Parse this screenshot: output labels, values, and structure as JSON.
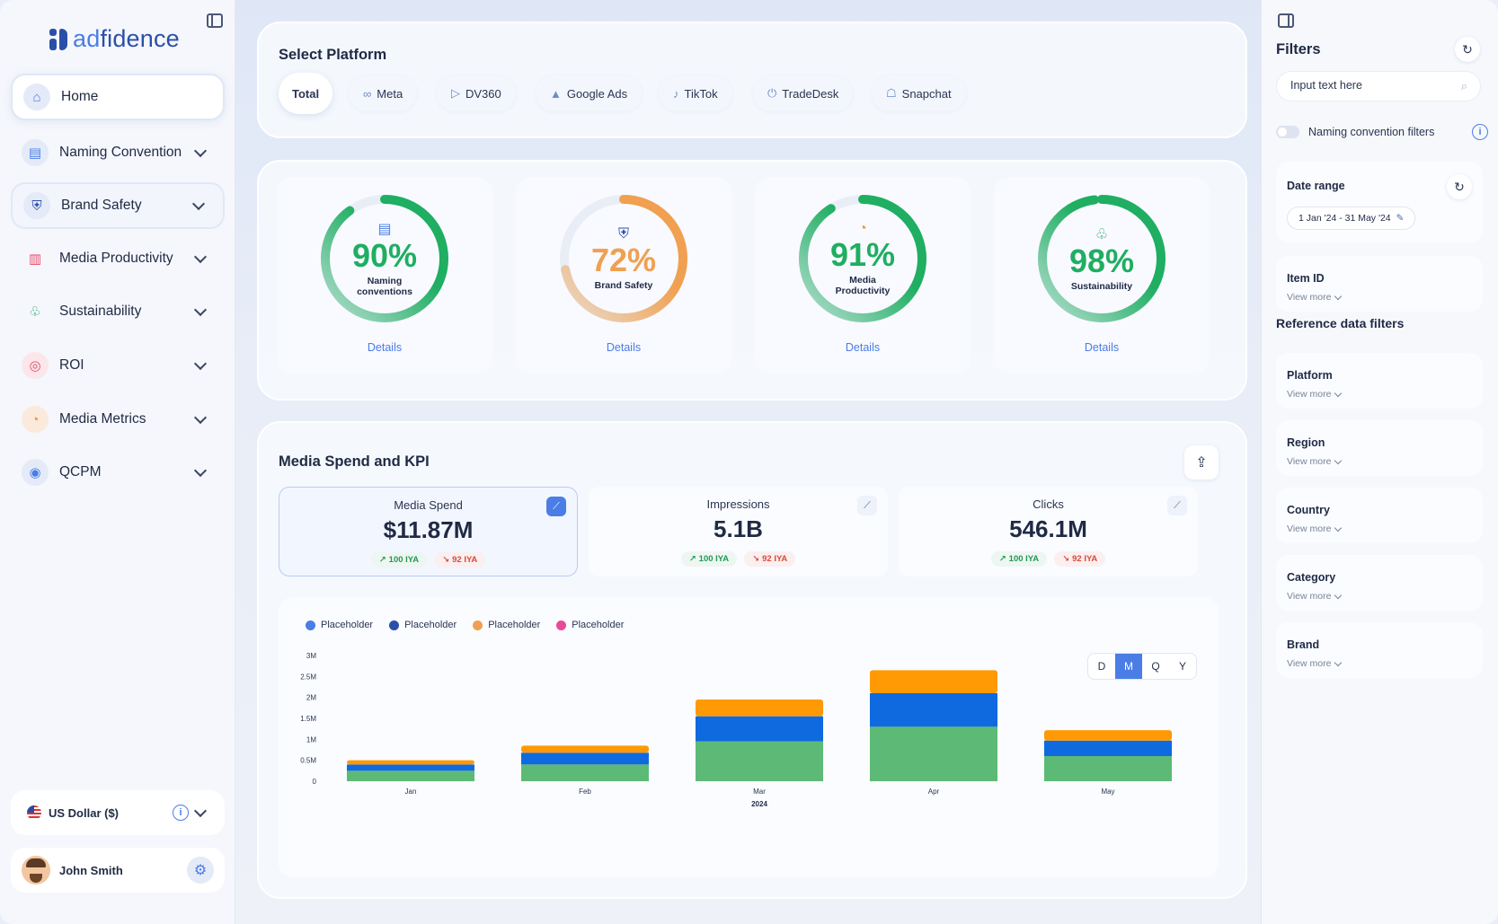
{
  "brand": {
    "name_prefix": "ad",
    "name_suffix": "fidence"
  },
  "nav": [
    {
      "label": "Home",
      "icon": "⌂",
      "icon_color": "#4a7de6",
      "icon_bg": "#e4eaf7",
      "expandable": false
    },
    {
      "label": "Naming Convention",
      "icon": "▤",
      "icon_color": "#4a7de6",
      "icon_bg": "#e4eaf7",
      "expandable": true
    },
    {
      "label": "Brand Safety",
      "icon": "⛨",
      "icon_color": "#2b4fa8",
      "icon_bg": "#e4eaf7",
      "expandable": true
    },
    {
      "label": "Media Productivity",
      "icon": "▥",
      "icon_color": "#e84a6a",
      "icon_bg": "#f5f7fc",
      "expandable": true
    },
    {
      "label": "Sustainability",
      "icon": "♧",
      "icon_color": "#22a86a",
      "icon_bg": "#f5f7fc",
      "expandable": true
    },
    {
      "label": "ROI",
      "icon": "◎",
      "icon_color": "#e84a6a",
      "icon_bg": "#fbe6ea",
      "expandable": true
    },
    {
      "label": "Media Metrics",
      "icon": "◔",
      "icon_color": "#f0963c",
      "icon_bg": "#fbeadc",
      "expandable": true
    },
    {
      "label": "QCPM",
      "icon": "◉",
      "icon_color": "#4a7de6",
      "icon_bg": "#e4eaf7",
      "expandable": true
    }
  ],
  "currency": {
    "label": "US Dollar ($)"
  },
  "user": {
    "name": "John Smith"
  },
  "platform": {
    "title": "Select Platform",
    "chips": [
      {
        "label": "Total",
        "icon": ""
      },
      {
        "label": "Meta",
        "icon": "∞"
      },
      {
        "label": "DV360",
        "icon": "▷"
      },
      {
        "label": "Google Ads",
        "icon": "▲"
      },
      {
        "label": "TikTok",
        "icon": "♪"
      },
      {
        "label": "TradeDesk",
        "icon": "⏻"
      },
      {
        "label": "Snapchat",
        "icon": "☖"
      }
    ]
  },
  "scores": [
    {
      "pct": "90%",
      "value": 90,
      "label": "Naming conventions",
      "color": "#1fae62",
      "icon": "▤",
      "icon_color": "#4a7de6",
      "details": "Details"
    },
    {
      "pct": "72%",
      "value": 72,
      "label": "Brand Safety",
      "color": "#f0a050",
      "icon": "⛨",
      "icon_color": "#2b4fa8",
      "details": "Details"
    },
    {
      "pct": "91%",
      "value": 91,
      "label": "Media Productivity",
      "color": "#1fae62",
      "icon": "◔",
      "icon_color": "#f0963c",
      "details": "Details"
    },
    {
      "pct": "98%",
      "value": 98,
      "label": "Sustainability",
      "color": "#1fae62",
      "icon": "♧",
      "icon_color": "#22a86a",
      "details": "Details"
    }
  ],
  "spend": {
    "title": "Media Spend and KPI",
    "kpis": [
      {
        "label": "Media Spend",
        "value": "$11.87M",
        "up": "100 IYA",
        "down": "92 IYA"
      },
      {
        "label": "Impressions",
        "value": "5.1B",
        "up": "100 IYA",
        "down": "92 IYA"
      },
      {
        "label": "Clicks",
        "value": "546.1M",
        "up": "100 IYA",
        "down": "92 IYA"
      }
    ],
    "periods": [
      "D",
      "M",
      "Q",
      "Y"
    ],
    "active_period": "M"
  },
  "chart_data": {
    "type": "bar",
    "stacked": true,
    "categories": [
      "Jan",
      "Feb",
      "Mar",
      "Apr",
      "May"
    ],
    "x_group_label": "2024",
    "legend": [
      {
        "name": "Placeholder",
        "color": "#4a7de6"
      },
      {
        "name": "Placeholder",
        "color": "#2b4fa8"
      },
      {
        "name": "Placeholder",
        "color": "#f0a050"
      },
      {
        "name": "Placeholder",
        "color": "#e84a9a"
      }
    ],
    "series": [
      {
        "name": "Green",
        "color": "#5cba76",
        "values": [
          0.25,
          0.4,
          0.95,
          1.3,
          0.6
        ]
      },
      {
        "name": "Blue",
        "color": "#0f6ae0",
        "values": [
          0.15,
          0.28,
          0.6,
          0.8,
          0.37
        ]
      },
      {
        "name": "Orange",
        "color": "#ff9a05",
        "values": [
          0.1,
          0.17,
          0.4,
          0.55,
          0.25
        ]
      }
    ],
    "ylim": [
      0,
      3
    ],
    "yticks": [
      {
        "v": 0,
        "label": "0"
      },
      {
        "v": 0.5,
        "label": "0.5M"
      },
      {
        "v": 1,
        "label": "1M"
      },
      {
        "v": 1.5,
        "label": "1.5M"
      },
      {
        "v": 2,
        "label": "2M"
      },
      {
        "v": 2.5,
        "label": "2.5M"
      },
      {
        "v": 3,
        "label": "3M"
      }
    ]
  },
  "filters": {
    "title": "Filters",
    "search_placeholder": "Input text here",
    "naming_toggle": "Naming convention filters",
    "date_range": {
      "title": "Date range",
      "value": "1 Jan '24 - 31 May '24"
    },
    "item_id": {
      "title": "Item ID",
      "more": "View more"
    },
    "reference_title": "Reference data filters",
    "reference": [
      {
        "title": "Platform",
        "more": "View more"
      },
      {
        "title": "Region",
        "more": "View more"
      },
      {
        "title": "Country",
        "more": "View more"
      },
      {
        "title": "Category",
        "more": "View more"
      },
      {
        "title": "Brand",
        "more": "View more"
      }
    ]
  }
}
